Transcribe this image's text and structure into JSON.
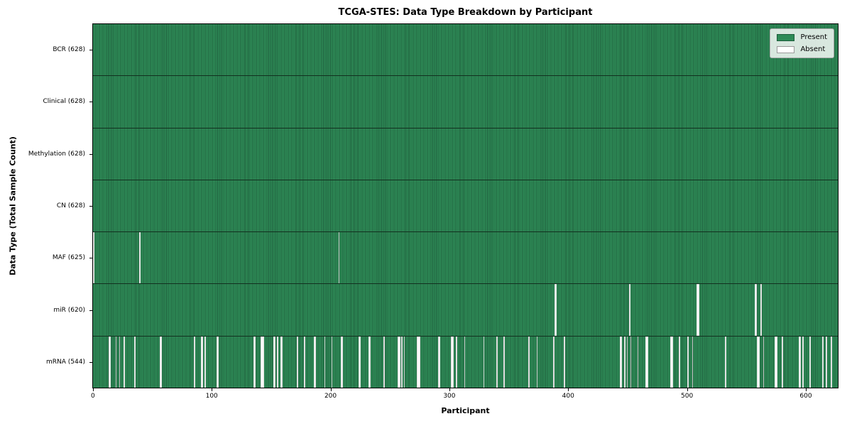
{
  "figure": {
    "title": "TCGA-STES: Data Type Breakdown by Participant",
    "xlabel": "Participant",
    "ylabel": "Data Type (Total Sample Count)"
  },
  "legend": {
    "position": "upper right",
    "entries": [
      {
        "label": "Present",
        "color": "#2e8b57"
      },
      {
        "label": "Absent",
        "color": "#ffffff"
      }
    ]
  },
  "chart_data": {
    "type": "heatmap",
    "title": "TCGA-STES: Data Type Breakdown by Participant",
    "xlabel": "Participant",
    "ylabel": "Data Type (Total Sample Count)",
    "n_participants": 628,
    "xlim": [
      -0.5,
      627.5
    ],
    "x_ticks": [
      0,
      100,
      200,
      300,
      400,
      500,
      600
    ],
    "grid": false,
    "legend_position": "upper right",
    "colors": {
      "present": "#2e8b57",
      "absent": "#ffffff",
      "cell_edge": "#20603e",
      "row_divider": "#12301f"
    },
    "rows": [
      {
        "label": "BCR (628)",
        "data_type": "BCR",
        "present_count": 628,
        "absent_participants": []
      },
      {
        "label": "Clinical (628)",
        "data_type": "Clinical",
        "present_count": 628,
        "absent_participants": []
      },
      {
        "label": "Methylation (628)",
        "data_type": "Methylation",
        "present_count": 628,
        "absent_participants": []
      },
      {
        "label": "CN (628)",
        "data_type": "CN",
        "present_count": 628,
        "absent_participants": []
      },
      {
        "label": "MAF (625)",
        "data_type": "MAF",
        "present_count": 625,
        "absent_participants": [
          0,
          39,
          207
        ]
      },
      {
        "label": "miR (620)",
        "data_type": "miR",
        "present_count": 620,
        "absent_participants": [
          389,
          390,
          452,
          509,
          510,
          558,
          559,
          563
        ]
      },
      {
        "label": "mRNA (544)",
        "data_type": "mRNA",
        "present_count": 544,
        "absent_participants": [
          13,
          14,
          19,
          22,
          26,
          35,
          56,
          57,
          85,
          91,
          92,
          94,
          104,
          105,
          135,
          136,
          141,
          142,
          143,
          152,
          153,
          155,
          158,
          159,
          172,
          178,
          186,
          187,
          195,
          201,
          209,
          210,
          224,
          225,
          232,
          233,
          245,
          257,
          258,
          260,
          262,
          273,
          274,
          275,
          291,
          292,
          302,
          303,
          306,
          313,
          329,
          340,
          346,
          367,
          374,
          388,
          397,
          444,
          445,
          448,
          450,
          453,
          459,
          466,
          467,
          487,
          488,
          494,
          501,
          505,
          533,
          560,
          561,
          565,
          575,
          576,
          581,
          595,
          596,
          598,
          604,
          615,
          618,
          622
        ]
      }
    ]
  }
}
